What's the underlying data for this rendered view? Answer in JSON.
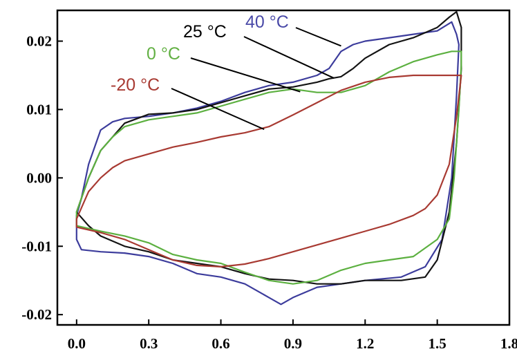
{
  "chart_data": {
    "type": "line",
    "title": "",
    "xlabel": "",
    "ylabel": "",
    "xlim": [
      -0.08,
      1.8
    ],
    "ylim": [
      -0.0215,
      0.0245
    ],
    "grid": false,
    "x_ticks": [
      "0.0",
      "0.3",
      "0.6",
      "0.9",
      "1.2",
      "1.5",
      "1.8"
    ],
    "x_tick_values": [
      0.0,
      0.3,
      0.6,
      0.9,
      1.2,
      1.5,
      1.8
    ],
    "y_ticks": [
      "0.02",
      "0.01",
      "0.00",
      "-0.01",
      "-0.02"
    ],
    "y_tick_values": [
      0.02,
      0.01,
      0.0,
      -0.01,
      -0.02
    ],
    "series": [
      {
        "name": "40 °C",
        "color": "#3c3c9c",
        "anodic": [
          [
            0.0,
            -0.0055
          ],
          [
            0.02,
            -0.003
          ],
          [
            0.05,
            0.002
          ],
          [
            0.1,
            0.007
          ],
          [
            0.15,
            0.0082
          ],
          [
            0.2,
            0.0087
          ],
          [
            0.3,
            0.009
          ],
          [
            0.4,
            0.0095
          ],
          [
            0.5,
            0.0102
          ],
          [
            0.6,
            0.0112
          ],
          [
            0.7,
            0.0125
          ],
          [
            0.8,
            0.0135
          ],
          [
            0.9,
            0.014
          ],
          [
            1.0,
            0.015
          ],
          [
            1.05,
            0.016
          ],
          [
            1.1,
            0.0185
          ],
          [
            1.15,
            0.0195
          ],
          [
            1.2,
            0.02
          ],
          [
            1.3,
            0.0205
          ],
          [
            1.4,
            0.021
          ],
          [
            1.5,
            0.0215
          ],
          [
            1.56,
            0.0228
          ],
          [
            1.58,
            0.021
          ],
          [
            1.59,
            0.0195
          ]
        ],
        "cathodic": [
          [
            1.59,
            0.0195
          ],
          [
            1.58,
            0.012
          ],
          [
            1.56,
            0.0
          ],
          [
            1.52,
            -0.009
          ],
          [
            1.45,
            -0.013
          ],
          [
            1.35,
            -0.0145
          ],
          [
            1.2,
            -0.015
          ],
          [
            1.1,
            -0.0155
          ],
          [
            1.0,
            -0.016
          ],
          [
            0.9,
            -0.0175
          ],
          [
            0.85,
            -0.0185
          ],
          [
            0.8,
            -0.0175
          ],
          [
            0.7,
            -0.0155
          ],
          [
            0.6,
            -0.0145
          ],
          [
            0.5,
            -0.014
          ],
          [
            0.4,
            -0.0125
          ],
          [
            0.3,
            -0.0115
          ],
          [
            0.2,
            -0.011
          ],
          [
            0.1,
            -0.0108
          ],
          [
            0.02,
            -0.0105
          ],
          [
            0.0,
            -0.009
          ],
          [
            0.0,
            -0.0055
          ]
        ]
      },
      {
        "name": "25 °C",
        "color": "#141414",
        "anodic": [
          [
            0.0,
            -0.005
          ],
          [
            0.05,
            0.0
          ],
          [
            0.1,
            0.004
          ],
          [
            0.2,
            0.008
          ],
          [
            0.3,
            0.0093
          ],
          [
            0.4,
            0.0095
          ],
          [
            0.5,
            0.01
          ],
          [
            0.6,
            0.011
          ],
          [
            0.7,
            0.012
          ],
          [
            0.8,
            0.013
          ],
          [
            0.9,
            0.0133
          ],
          [
            1.0,
            0.014
          ],
          [
            1.05,
            0.0145
          ],
          [
            1.1,
            0.0148
          ],
          [
            1.15,
            0.016
          ],
          [
            1.2,
            0.0175
          ],
          [
            1.3,
            0.0195
          ],
          [
            1.4,
            0.0205
          ],
          [
            1.5,
            0.022
          ],
          [
            1.55,
            0.0235
          ],
          [
            1.58,
            0.0243
          ],
          [
            1.6,
            0.022
          ],
          [
            1.6,
            0.016
          ]
        ],
        "cathodic": [
          [
            1.6,
            0.016
          ],
          [
            1.58,
            0.005
          ],
          [
            1.55,
            -0.005
          ],
          [
            1.5,
            -0.012
          ],
          [
            1.45,
            -0.0145
          ],
          [
            1.35,
            -0.015
          ],
          [
            1.2,
            -0.015
          ],
          [
            1.1,
            -0.0155
          ],
          [
            1.0,
            -0.0155
          ],
          [
            0.9,
            -0.015
          ],
          [
            0.8,
            -0.0148
          ],
          [
            0.7,
            -0.014
          ],
          [
            0.6,
            -0.013
          ],
          [
            0.5,
            -0.0125
          ],
          [
            0.4,
            -0.012
          ],
          [
            0.3,
            -0.0108
          ],
          [
            0.2,
            -0.01
          ],
          [
            0.1,
            -0.0085
          ],
          [
            0.05,
            -0.007
          ],
          [
            0.0,
            -0.005
          ]
        ]
      },
      {
        "name": "0 °C",
        "color": "#5cb040",
        "anodic": [
          [
            0.0,
            -0.005
          ],
          [
            0.05,
            0.0
          ],
          [
            0.1,
            0.004
          ],
          [
            0.15,
            0.006
          ],
          [
            0.2,
            0.0075
          ],
          [
            0.3,
            0.0085
          ],
          [
            0.4,
            0.009
          ],
          [
            0.5,
            0.0095
          ],
          [
            0.6,
            0.0105
          ],
          [
            0.7,
            0.0115
          ],
          [
            0.8,
            0.0125
          ],
          [
            0.9,
            0.013
          ],
          [
            1.0,
            0.0125
          ],
          [
            1.1,
            0.0125
          ],
          [
            1.2,
            0.0135
          ],
          [
            1.3,
            0.0155
          ],
          [
            1.4,
            0.017
          ],
          [
            1.5,
            0.018
          ],
          [
            1.56,
            0.0185
          ],
          [
            1.6,
            0.0185
          ],
          [
            1.6,
            0.0165
          ]
        ],
        "cathodic": [
          [
            1.6,
            0.0165
          ],
          [
            1.59,
            0.01
          ],
          [
            1.57,
            0.0
          ],
          [
            1.55,
            -0.006
          ],
          [
            1.5,
            -0.009
          ],
          [
            1.4,
            -0.0115
          ],
          [
            1.3,
            -0.012
          ],
          [
            1.2,
            -0.0125
          ],
          [
            1.1,
            -0.0135
          ],
          [
            1.0,
            -0.015
          ],
          [
            0.9,
            -0.0155
          ],
          [
            0.8,
            -0.015
          ],
          [
            0.7,
            -0.0138
          ],
          [
            0.6,
            -0.0125
          ],
          [
            0.5,
            -0.012
          ],
          [
            0.4,
            -0.0112
          ],
          [
            0.3,
            -0.0095
          ],
          [
            0.2,
            -0.0085
          ],
          [
            0.1,
            -0.0078
          ],
          [
            0.0,
            -0.007
          ],
          [
            0.0,
            -0.005
          ]
        ]
      },
      {
        "name": "-20 °C",
        "color": "#a83a32",
        "anodic": [
          [
            0.0,
            -0.006
          ],
          [
            0.05,
            -0.002
          ],
          [
            0.1,
            0.0
          ],
          [
            0.15,
            0.0015
          ],
          [
            0.2,
            0.0025
          ],
          [
            0.3,
            0.0035
          ],
          [
            0.4,
            0.0045
          ],
          [
            0.5,
            0.0052
          ],
          [
            0.6,
            0.006
          ],
          [
            0.7,
            0.0066
          ],
          [
            0.8,
            0.0075
          ],
          [
            0.9,
            0.0092
          ],
          [
            1.0,
            0.011
          ],
          [
            1.1,
            0.0128
          ],
          [
            1.2,
            0.014
          ],
          [
            1.3,
            0.0147
          ],
          [
            1.4,
            0.015
          ],
          [
            1.5,
            0.015
          ],
          [
            1.6,
            0.015
          ]
        ],
        "cathodic": [
          [
            1.6,
            0.015
          ],
          [
            1.58,
            0.009
          ],
          [
            1.55,
            0.002
          ],
          [
            1.5,
            -0.0025
          ],
          [
            1.45,
            -0.0045
          ],
          [
            1.4,
            -0.0055
          ],
          [
            1.3,
            -0.0068
          ],
          [
            1.2,
            -0.0078
          ],
          [
            1.1,
            -0.0088
          ],
          [
            1.0,
            -0.0098
          ],
          [
            0.9,
            -0.0108
          ],
          [
            0.8,
            -0.0118
          ],
          [
            0.7,
            -0.0126
          ],
          [
            0.6,
            -0.013
          ],
          [
            0.5,
            -0.0128
          ],
          [
            0.4,
            -0.012
          ],
          [
            0.3,
            -0.0105
          ],
          [
            0.2,
            -0.009
          ],
          [
            0.1,
            -0.008
          ],
          [
            0.0,
            -0.0072
          ],
          [
            0.0,
            -0.006
          ]
        ]
      }
    ],
    "annotations": [
      {
        "label": "40 °C",
        "color": "#4a4aa8",
        "target": [
          1.1,
          0.0193
        ]
      },
      {
        "label": "25 °C",
        "color": "#000000",
        "target": [
          1.07,
          0.0146
        ]
      },
      {
        "label": "0 °C",
        "color": "#62b043",
        "target": [
          0.93,
          0.0126
        ]
      },
      {
        "label": "-20 °C",
        "color": "#a83a32",
        "target": [
          0.78,
          0.0071
        ]
      }
    ]
  }
}
